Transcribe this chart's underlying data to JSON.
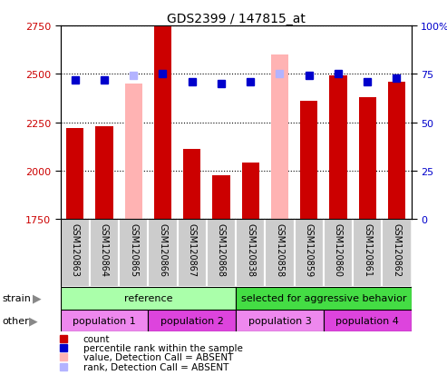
{
  "title": "GDS2399 / 147815_at",
  "samples": [
    "GSM120863",
    "GSM120864",
    "GSM120865",
    "GSM120866",
    "GSM120867",
    "GSM120868",
    "GSM120838",
    "GSM120858",
    "GSM120859",
    "GSM120860",
    "GSM120861",
    "GSM120862"
  ],
  "bar_values": [
    2220,
    2230,
    null,
    2750,
    2110,
    1975,
    2040,
    null,
    2360,
    2490,
    2380,
    2460
  ],
  "absent_bar_values": [
    null,
    null,
    2450,
    null,
    null,
    null,
    null,
    2600,
    null,
    null,
    null,
    null
  ],
  "percentile_values": [
    72,
    72,
    null,
    75,
    71,
    70,
    71,
    null,
    74,
    75,
    71,
    73
  ],
  "absent_percentile_values": [
    null,
    null,
    74,
    null,
    null,
    null,
    null,
    75,
    null,
    null,
    null,
    null
  ],
  "ylim_left": [
    1750,
    2750
  ],
  "ylim_right": [
    0,
    100
  ],
  "yticks_left": [
    1750,
    2000,
    2250,
    2500,
    2750
  ],
  "yticks_right": [
    0,
    25,
    50,
    75,
    100
  ],
  "ytick_labels_right": [
    "0",
    "25",
    "50",
    "75",
    "100%"
  ],
  "bar_color": "#cc0000",
  "absent_bar_color": "#ffb3b3",
  "percentile_color": "#0000cc",
  "absent_percentile_color": "#b3b3ff",
  "strain_groups": [
    {
      "label": "reference",
      "start": 0,
      "end": 6,
      "color": "#aaffaa"
    },
    {
      "label": "selected for aggressive behavior",
      "start": 6,
      "end": 12,
      "color": "#44dd44"
    }
  ],
  "other_groups": [
    {
      "label": "population 1",
      "start": 0,
      "end": 3,
      "color": "#ee88ee"
    },
    {
      "label": "population 2",
      "start": 3,
      "end": 6,
      "color": "#dd44dd"
    },
    {
      "label": "population 3",
      "start": 6,
      "end": 9,
      "color": "#ee88ee"
    },
    {
      "label": "population 4",
      "start": 9,
      "end": 12,
      "color": "#dd44dd"
    }
  ],
  "legend_items": [
    {
      "label": "count",
      "color": "#cc0000"
    },
    {
      "label": "percentile rank within the sample",
      "color": "#0000cc"
    },
    {
      "label": "value, Detection Call = ABSENT",
      "color": "#ffb3b3"
    },
    {
      "label": "rank, Detection Call = ABSENT",
      "color": "#b3b3ff"
    }
  ],
  "label_bg_color": "#cccccc",
  "label_border_color": "#ffffff",
  "bg_color": "#ffffff",
  "grid_color": "#000000",
  "tick_label_color_left": "#cc0000",
  "tick_label_color_right": "#0000cc",
  "bar_width": 0.6,
  "marker_size": 6
}
